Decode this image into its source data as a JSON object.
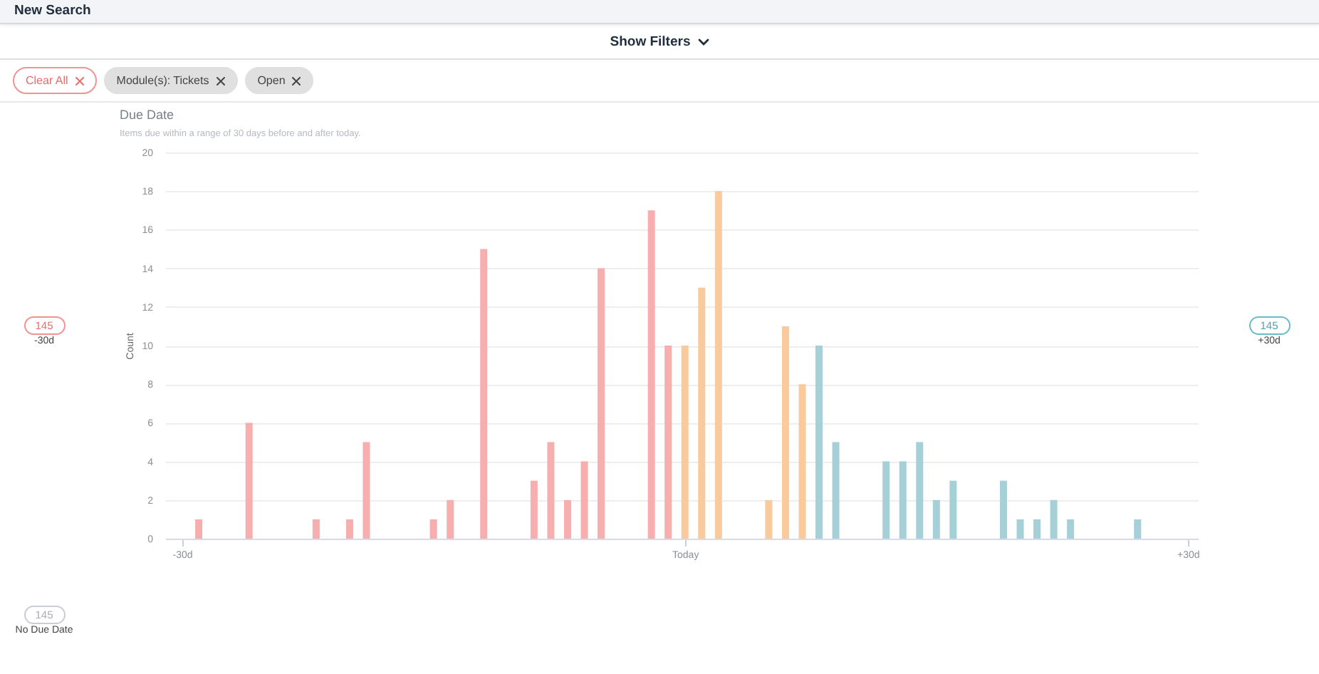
{
  "chart_data": {
    "type": "bar",
    "title": "Due Date",
    "subtitle": "Items due within a range of 30 days before and after today.",
    "ylabel": "Count",
    "x": [
      -29,
      -26,
      -22,
      -20,
      -19,
      -15,
      -14,
      -12,
      -9,
      -8,
      -7,
      -6,
      -5,
      -2,
      -1,
      0,
      1,
      2,
      5,
      6,
      7,
      8,
      9,
      12,
      13,
      14,
      15,
      16,
      19,
      20,
      21,
      22,
      23,
      27
    ],
    "values": [
      1,
      6,
      1,
      1,
      5,
      1,
      2,
      15,
      3,
      5,
      2,
      4,
      14,
      17,
      10,
      10,
      13,
      18,
      2,
      11,
      8,
      10,
      5,
      4,
      4,
      5,
      2,
      3,
      3,
      1,
      1,
      2,
      1,
      1
    ],
    "colors": [
      "#f6aeae",
      "#f6aeae",
      "#f6aeae",
      "#f6aeae",
      "#f6aeae",
      "#f6aeae",
      "#f6aeae",
      "#f6aeae",
      "#f6aeae",
      "#f6aeae",
      "#f6aeae",
      "#f6aeae",
      "#f6aeae",
      "#f6aeae",
      "#f6aeae",
      "#f9ca9b",
      "#f9ca9b",
      "#f9ca9b",
      "#f9ca9b",
      "#f9ca9b",
      "#f9ca9b",
      "#a5d0d8",
      "#a5d0d8",
      "#a5d0d8",
      "#a5d0d8",
      "#a5d0d8",
      "#a5d0d8",
      "#a5d0d8",
      "#a5d0d8",
      "#a5d0d8",
      "#a5d0d8",
      "#a5d0d8",
      "#a5d0d8",
      "#a5d0d8"
    ],
    "xlim": [
      -31,
      30.6
    ],
    "xticks": [
      {
        "value": -30,
        "label": "-30d"
      },
      {
        "value": 0,
        "label": "Today"
      },
      {
        "value": 30,
        "label": "+30d"
      }
    ],
    "ylim": [
      0,
      20
    ],
    "yticks": [
      0,
      2,
      4,
      6,
      8,
      10,
      12,
      14,
      16,
      18,
      20
    ],
    "grid": "y",
    "annotations": [
      "New Search",
      "Show Filters",
      "Clear All",
      "Module(s): Tickets",
      "Open",
      "145",
      "-30d",
      "145",
      "+30d",
      "145",
      "No Due Date"
    ]
  }
}
